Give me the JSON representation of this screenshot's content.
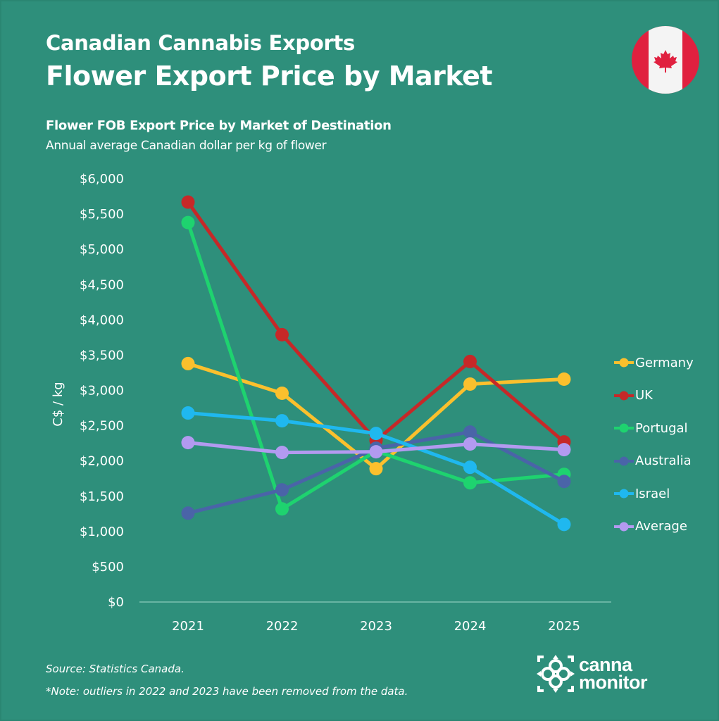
{
  "header": {
    "title": "Canadian Cannabis Exports",
    "headline": "Flower Export Price by Market",
    "subtitle": "Flower FOB Export Price by Market of Destination",
    "description": "Annual average Canadian dollar per kg of flower",
    "flag_icon": "canada-flag-icon"
  },
  "colors": {
    "background": "#2e8f7b",
    "Germany": "#fbc02d",
    "UK": "#c62828",
    "Portugal": "#1ed36f",
    "Australia": "#4a64a8",
    "Israel": "#1fb8ef",
    "Average": "#b39af0"
  },
  "chart_data": {
    "type": "line",
    "title": "Flower FOB Export Price by Market of Destination",
    "subtitle": "Annual average Canadian dollar per kg of flower",
    "xlabel": "",
    "ylabel": "C$ / kg",
    "x": [
      "2021",
      "2022",
      "2023",
      "2024",
      "2025"
    ],
    "ylim": [
      0,
      6000
    ],
    "yticks": [
      0,
      500,
      1000,
      1500,
      2000,
      2500,
      3000,
      3500,
      4000,
      4500,
      5000,
      5500,
      6000
    ],
    "ytick_labels": [
      "$0",
      "$500",
      "$1,000",
      "$1,500",
      "$2,000",
      "$2,500",
      "$3,000",
      "$3,500",
      "$4,000",
      "$4,500",
      "$5,000",
      "$5,500",
      "$6,000"
    ],
    "grid": false,
    "legend_position": "right",
    "series": [
      {
        "name": "Germany",
        "color": "#fbc02d",
        "values": [
          3380,
          2960,
          1890,
          3090,
          3160
        ]
      },
      {
        "name": "UK",
        "color": "#c62828",
        "values": [
          5670,
          3790,
          2290,
          3410,
          2270
        ]
      },
      {
        "name": "Portugal",
        "color": "#1ed36f",
        "values": [
          5380,
          1320,
          2140,
          1690,
          1810
        ]
      },
      {
        "name": "Australia",
        "color": "#4a64a8",
        "values": [
          1260,
          1590,
          2180,
          2410,
          1710
        ]
      },
      {
        "name": "Israel",
        "color": "#1fb8ef",
        "values": [
          2680,
          2570,
          2390,
          1910,
          1100
        ]
      },
      {
        "name": "Average",
        "color": "#b39af0",
        "values": [
          2260,
          2120,
          2130,
          2240,
          2160
        ]
      }
    ]
  },
  "legend": {
    "items": [
      {
        "label": "Germany",
        "color": "#fbc02d"
      },
      {
        "label": "UK",
        "color": "#c62828"
      },
      {
        "label": "Portugal",
        "color": "#1ed36f"
      },
      {
        "label": "Australia",
        "color": "#4a64a8"
      },
      {
        "label": "Israel",
        "color": "#1fb8ef"
      },
      {
        "label": "Average",
        "color": "#b39af0"
      }
    ]
  },
  "footer": {
    "source": "Source: Statistics Canada.",
    "note": "*Note: outliers in 2022 and 2023 have been removed from the data.",
    "logo_line1": "canna",
    "logo_line2": "monitor"
  }
}
